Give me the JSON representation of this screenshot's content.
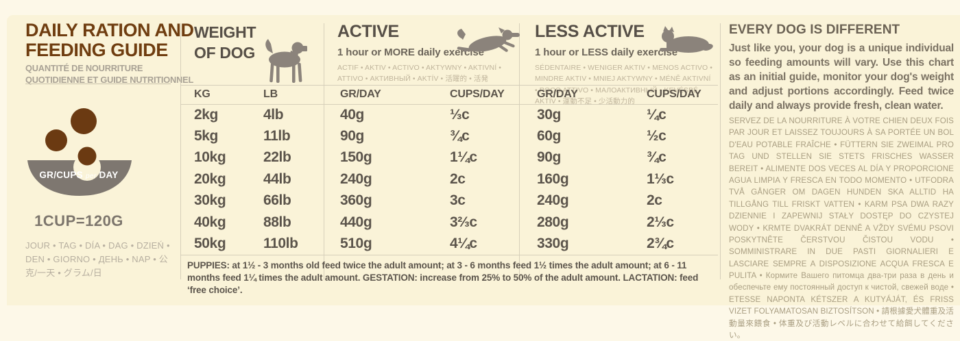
{
  "colors": {
    "background_outer": "#fdf8e8",
    "background_panel": "#faf3d8",
    "title_brown": "#6f3d10",
    "kibble_brown": "#6b3a12",
    "bowl_gray": "#7e7770",
    "ink": "#5b544b",
    "muted_tan": "#a99e82",
    "divider": "#d6cfba"
  },
  "left_panel": {
    "title": "DAILY RATION AND\nFEEDING GUIDE",
    "subtitle": "QUANTITÉ DE NOURRITURE\nQUOTIDIENNE ET GUIDE NUTRITIONNEL",
    "bowl": {
      "label_main": "GR/CUPS",
      "label_per": "per",
      "label_day": "DAY"
    },
    "cup_equivalence": "1CUP=120G",
    "day_words": "JOUR • TAG • DÍA • DAG • DZIEŃ • DEN • GIORNO • ДЕНЬ • NAP • 公克/一天 • グラム/日"
  },
  "weight_panel": {
    "title": "WEIGHT\nOF DOG"
  },
  "active_panel": {
    "title": "ACTIVE",
    "subtitle": "1 hour or MORE daily exercise",
    "languages": "ACTIF • AKTIV • ACTIVO • AKTYWNY • AKTIVNÍ • ATTIVO • АКТИВНЫЙ • AKTÍV • 活躍的 • 活発"
  },
  "less_active_panel": {
    "title": "LESS ACTIVE",
    "subtitle": "1 hour or LESS daily exercise",
    "languages": "SÉDENTAIRE • WENIGER AKTIV • MENOS ACTIVO • MINDRE AKTIV • MNIEJ AKTYWNY • MÉNĚ AKTIVNÍ • POCO ATTIVO • МАЛОАКТИВНЫЙ • KEVÉSBÉ AKTÍV • 運動不足 • 少活動力的"
  },
  "feeding_table": {
    "headers": [
      "KG",
      "LB",
      "GR/DAY",
      "CUPS/DAY",
      "GR/DAY",
      "CUPS/DAY"
    ],
    "rows": [
      [
        "2kg",
        "4lb",
        "40g",
        "⅓c",
        "30g",
        "¼c"
      ],
      [
        "5kg",
        "11lb",
        "90g",
        "¾c",
        "60g",
        "½c"
      ],
      [
        "10kg",
        "22lb",
        "150g",
        "1¼c",
        "90g",
        "¾c"
      ],
      [
        "20kg",
        "44lb",
        "240g",
        "2c",
        "160g",
        "1⅓c"
      ],
      [
        "30kg",
        "66lb",
        "360g",
        "3c",
        "240g",
        "2c"
      ],
      [
        "40kg",
        "88lb",
        "440g",
        "3⅔c",
        "280g",
        "2⅓c"
      ],
      [
        "50kg",
        "110lb",
        "510g",
        "4¼c",
        "330g",
        "2¾c"
      ]
    ],
    "notes": "PUPPIES: at 1½ - 3 months old feed twice the adult amount; at 3 - 6 months feed 1½ times the adult amount; at 6 - 11 months feed 1¼ times the adult amount. GESTATION: increase from 25% to 50% of the adult amount. LACTATION: feed ‘free choice’."
  },
  "right_panel": {
    "heading": "EVERY DOG IS DIFFERENT",
    "intro": "Just like you, your dog is a unique individual so feeding amounts will vary. Use this chart as an initial guide, monitor your dog's weight and adjust portions accordingly. Feed twice daily and always provide fresh, clean water.",
    "languages": "SERVEZ DE LA NOURRITURE À VOTRE CHIEN DEUX FOIS PAR JOUR ET LAISSEZ TOUJOURS À SA PORTÉE UN BOL D'EAU POTABLE FRAÎCHE • FÜTTERN SIE ZWEIMAL PRO TAG UND STELLEN SIE STETS FRISCHES WASSER BEREIT • ALIMENTE DOS VECES AL DÍA Y PROPORCIONE AGUA LIMPIA Y FRESCA EN TODO MOMENTO • UTFODRA TVÅ GÅNGER OM DAGEN HUNDEN SKA ALLTID HA TILLGÅNG TILL FRISKT VATTEN • KARM PSA DWA RAZY DZIENNIE I ZAPEWNIJ STAŁY DOSTĘP DO CZYSTEJ WODY • KRMTE DVAKRÁT DENNĚ A VŽDY SVÉMU PSOVI POSKYTNĚTE ČERSTVOU ČISTOU VODU • SOMMINISTRARE IN DUE PASTI GIORNALIERI E LASCIARE SEMPRE A DISPOSIZIONE ACQUA FRESCA E PULITA • Кормите Вашего питомца два-три раза в день и обеспечьте ему постоянный доступ к чистой, свежей воде • ETESSE NAPONTA KÉTSZER A KUTYÁJÁT, ÉS FRISS VIZET FOLYAMATOSAN BIZTOSÍTSON • 請根據愛犬體重及活動量來餵食 • 体重及び活動レベルに合わせて給餌してください。"
  }
}
